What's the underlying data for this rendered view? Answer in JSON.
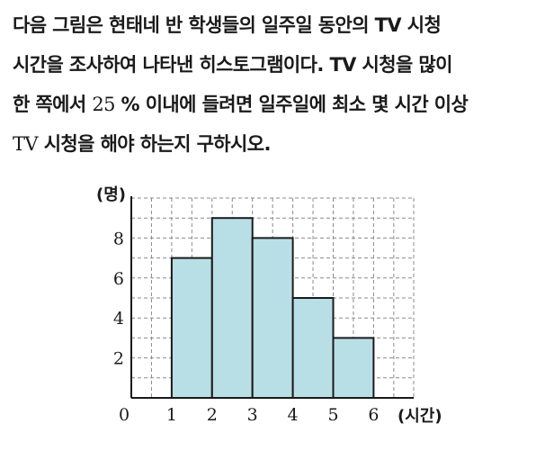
{
  "problem": {
    "line1": "다음 그림은 현태네 반 학생들의 일주일 동안의 TV 시청",
    "line2": "시간을 조사하여 나타낸 히스토그램이다. TV 시청을 많이",
    "line3_before": "한 쪽에서 ",
    "line3_number": "25",
    "line3_after": " % 이내에 들려면 일주일에 최소 몇 시간 이상",
    "line4_tv": "TV",
    "line4_rest": " 시청을 해야 하는지 구하시오."
  },
  "chart_data": {
    "type": "bar",
    "histogram": true,
    "bins": [
      [
        1,
        2
      ],
      [
        2,
        3
      ],
      [
        3,
        4
      ],
      [
        4,
        5
      ],
      [
        5,
        6
      ]
    ],
    "values": [
      7,
      9,
      8,
      5,
      3
    ],
    "xlim": [
      0,
      7
    ],
    "ylim": [
      0,
      10
    ],
    "x_ticks": [
      "0",
      "1",
      "2",
      "3",
      "4",
      "5",
      "6"
    ],
    "y_ticks": [
      "2",
      "4",
      "6",
      "8"
    ],
    "xlabel": "(시간)",
    "ylabel": "(명)",
    "grid": "dashed",
    "bar_color": "#b9dfe6",
    "bar_edge_color": "#1a1a1a",
    "grid_color": "#8a8a8a"
  }
}
